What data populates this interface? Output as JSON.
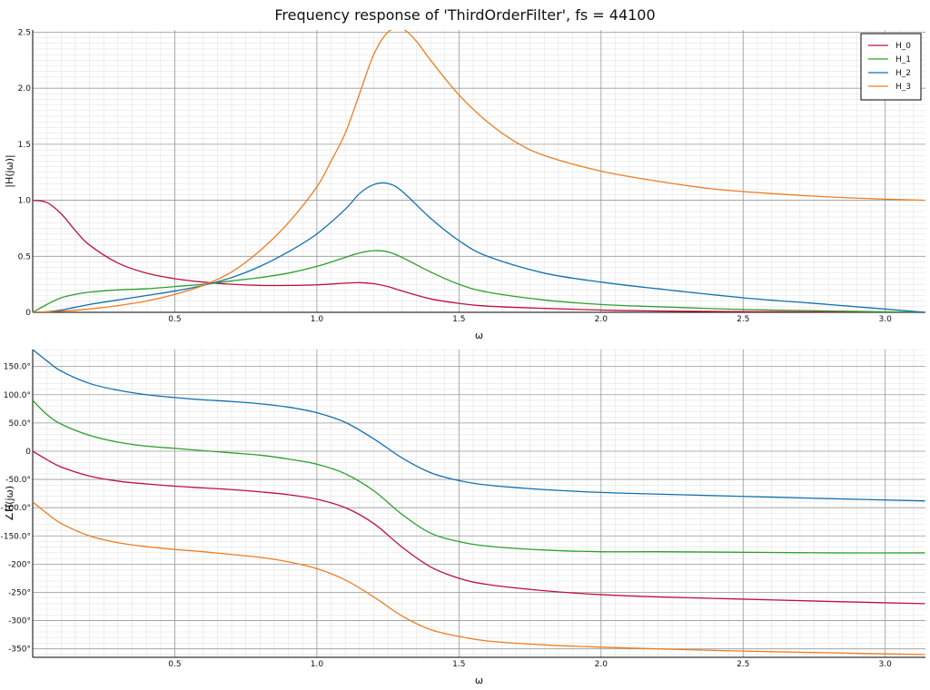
{
  "title": "Frequency response of 'ThirdOrderFilter', fs = 44100",
  "colors": {
    "grid_major": "#9a9a9a",
    "grid_minor": "#e3e3e3",
    "axis": "#000000",
    "background": "#ffffff"
  },
  "chart_data": [
    {
      "type": "line",
      "title": "Frequency response of 'ThirdOrderFilter', fs = 44100",
      "xlabel": "ω",
      "ylabel": "|H(jω)|",
      "xlim": [
        0,
        3.14159
      ],
      "ylim": [
        0,
        2.52
      ],
      "grid": true,
      "legend_position": "top-right",
      "x_ticks": [
        0.5,
        1.0,
        1.5,
        2.0,
        2.5,
        3.0
      ],
      "x_tick_labels": [
        "0.5",
        "1.0",
        "1.5",
        "2.0",
        "2.5",
        "3.0"
      ],
      "y_ticks": [
        0,
        0.5,
        1.0,
        1.5,
        2.0,
        2.5
      ],
      "y_tick_labels": [
        "0",
        "0.5",
        "1.0",
        "1.5",
        "2.0",
        "2.5"
      ],
      "series": [
        {
          "name": "H_0",
          "color": "#c0103a",
          "x": [
            0,
            0.05,
            0.1,
            0.15,
            0.2,
            0.3,
            0.4,
            0.5,
            0.6,
            0.7,
            0.8,
            0.9,
            1.0,
            1.1,
            1.15,
            1.2,
            1.25,
            1.3,
            1.4,
            1.5,
            1.6,
            1.8,
            2.0,
            2.2,
            2.5,
            2.8,
            3.14
          ],
          "y": [
            1.0,
            0.98,
            0.88,
            0.73,
            0.6,
            0.44,
            0.35,
            0.3,
            0.27,
            0.25,
            0.24,
            0.24,
            0.245,
            0.26,
            0.265,
            0.255,
            0.23,
            0.19,
            0.12,
            0.08,
            0.055,
            0.035,
            0.02,
            0.012,
            0.006,
            0.003,
            0.0
          ]
        },
        {
          "name": "H_1",
          "color": "#2ca02c",
          "x": [
            0,
            0.05,
            0.1,
            0.15,
            0.2,
            0.3,
            0.4,
            0.5,
            0.6,
            0.7,
            0.8,
            0.9,
            1.0,
            1.1,
            1.15,
            1.2,
            1.25,
            1.3,
            1.4,
            1.5,
            1.6,
            1.8,
            2.0,
            2.2,
            2.5,
            2.8,
            3.14
          ],
          "y": [
            0.0,
            0.07,
            0.13,
            0.16,
            0.18,
            0.2,
            0.21,
            0.23,
            0.25,
            0.28,
            0.31,
            0.35,
            0.41,
            0.49,
            0.53,
            0.55,
            0.54,
            0.49,
            0.36,
            0.25,
            0.18,
            0.11,
            0.07,
            0.05,
            0.025,
            0.012,
            0.0
          ]
        },
        {
          "name": "H_2",
          "color": "#1070b0",
          "x": [
            0,
            0.05,
            0.1,
            0.15,
            0.2,
            0.3,
            0.4,
            0.5,
            0.6,
            0.7,
            0.8,
            0.9,
            1.0,
            1.1,
            1.15,
            1.2,
            1.25,
            1.3,
            1.4,
            1.5,
            1.6,
            1.8,
            2.0,
            2.2,
            2.5,
            2.8,
            3.14
          ],
          "y": [
            0.0,
            0.005,
            0.02,
            0.045,
            0.07,
            0.11,
            0.15,
            0.19,
            0.24,
            0.31,
            0.41,
            0.54,
            0.7,
            0.92,
            1.06,
            1.14,
            1.15,
            1.08,
            0.84,
            0.64,
            0.5,
            0.35,
            0.27,
            0.21,
            0.13,
            0.07,
            0.0
          ]
        },
        {
          "name": "H_3",
          "color": "#ee7d20",
          "x": [
            0,
            0.1,
            0.2,
            0.3,
            0.4,
            0.5,
            0.6,
            0.7,
            0.8,
            0.9,
            1.0,
            1.05,
            1.1,
            1.15,
            1.2,
            1.25,
            1.3,
            1.35,
            1.4,
            1.5,
            1.6,
            1.7,
            1.8,
            2.0,
            2.2,
            2.4,
            2.6,
            2.8,
            3.0,
            3.14
          ],
          "y": [
            0.0,
            0.01,
            0.03,
            0.06,
            0.1,
            0.16,
            0.24,
            0.36,
            0.55,
            0.8,
            1.12,
            1.35,
            1.6,
            1.95,
            2.3,
            2.5,
            2.53,
            2.42,
            2.25,
            1.94,
            1.7,
            1.52,
            1.4,
            1.26,
            1.17,
            1.1,
            1.06,
            1.03,
            1.01,
            1.0
          ]
        }
      ]
    },
    {
      "type": "line",
      "xlabel": "ω",
      "ylabel": "∠H(jω)",
      "xlim": [
        0,
        3.14159
      ],
      "ylim": [
        -365,
        180
      ],
      "grid": true,
      "x_ticks": [
        0.5,
        1.0,
        1.5,
        2.0,
        2.5,
        3.0
      ],
      "x_tick_labels": [
        "0.5",
        "1.0",
        "1.5",
        "2.0",
        "2.5",
        "3.0"
      ],
      "y_ticks": [
        150,
        100,
        50,
        0,
        -50,
        -100,
        -150,
        -200,
        -250,
        -300,
        -350
      ],
      "y_tick_labels": [
        "150.0°",
        "100.0°",
        "50.0°",
        "0",
        "-50.0°",
        "-100.0°",
        "-150.0°",
        "-200°",
        "-250°",
        "-300°",
        "-350°"
      ],
      "series": [
        {
          "name": "H_0",
          "color": "#c0103a",
          "x": [
            0,
            0.05,
            0.1,
            0.2,
            0.3,
            0.4,
            0.5,
            0.6,
            0.7,
            0.8,
            0.9,
            1.0,
            1.1,
            1.2,
            1.3,
            1.4,
            1.5,
            1.6,
            1.8,
            2.0,
            2.2,
            2.5,
            2.8,
            3.14
          ],
          "y": [
            0,
            -15,
            -28,
            -44,
            -53,
            -58,
            -62,
            -65,
            -68,
            -72,
            -77,
            -85,
            -100,
            -128,
            -170,
            -205,
            -225,
            -236,
            -247,
            -254,
            -258,
            -262,
            -266,
            -270
          ]
        },
        {
          "name": "H_1",
          "color": "#2ca02c",
          "x": [
            0,
            0.05,
            0.1,
            0.2,
            0.3,
            0.4,
            0.5,
            0.6,
            0.7,
            0.8,
            0.9,
            1.0,
            1.1,
            1.2,
            1.3,
            1.4,
            1.5,
            1.6,
            1.8,
            2.0,
            2.2,
            2.5,
            2.8,
            3.14
          ],
          "y": [
            90,
            65,
            48,
            28,
            16,
            9,
            5,
            1,
            -3,
            -7,
            -14,
            -23,
            -40,
            -70,
            -112,
            -145,
            -160,
            -168,
            -175,
            -178,
            -178,
            -179,
            -180,
            -180
          ]
        },
        {
          "name": "H_2",
          "color": "#1070b0",
          "x": [
            0,
            0.05,
            0.1,
            0.2,
            0.3,
            0.4,
            0.5,
            0.6,
            0.7,
            0.8,
            0.9,
            1.0,
            1.1,
            1.2,
            1.3,
            1.4,
            1.5,
            1.6,
            1.8,
            2.0,
            2.2,
            2.5,
            2.8,
            3.14
          ],
          "y": [
            180,
            160,
            142,
            120,
            108,
            100,
            95,
            91,
            88,
            84,
            78,
            68,
            51,
            22,
            -12,
            -38,
            -52,
            -60,
            -68,
            -73,
            -76,
            -80,
            -84,
            -88
          ]
        },
        {
          "name": "H_3",
          "color": "#ee7d20",
          "x": [
            0,
            0.05,
            0.1,
            0.2,
            0.3,
            0.4,
            0.5,
            0.6,
            0.7,
            0.8,
            0.9,
            1.0,
            1.1,
            1.2,
            1.3,
            1.4,
            1.5,
            1.6,
            1.8,
            2.0,
            2.2,
            2.5,
            2.8,
            3.14
          ],
          "y": [
            -90,
            -110,
            -128,
            -150,
            -162,
            -169,
            -174,
            -178,
            -183,
            -188,
            -196,
            -208,
            -228,
            -258,
            -292,
            -316,
            -328,
            -336,
            -343,
            -347,
            -350,
            -354,
            -357,
            -360
          ]
        }
      ]
    }
  ]
}
